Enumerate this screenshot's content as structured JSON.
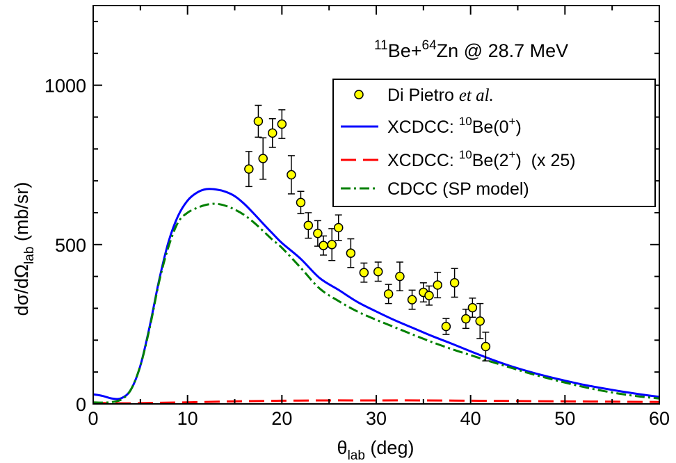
{
  "chart_data": {
    "type": "line",
    "xlabel": {
      "main": "θ",
      "sub": "lab",
      "rest": " (deg)"
    },
    "ylabel": {
      "main": "dσ/dΩ",
      "sub": "lab",
      "rest": " (mb/sr)"
    },
    "xlim": [
      0,
      60
    ],
    "ylim": [
      0,
      1250
    ],
    "x_ticks": [
      0,
      10,
      20,
      30,
      40,
      50,
      60
    ],
    "x_tick_labels": [
      "0",
      "10",
      "20",
      "30",
      "40",
      "50",
      "60"
    ],
    "y_ticks": [
      0,
      500,
      1000
    ],
    "y_tick_labels": [
      "0",
      "500",
      "1000"
    ],
    "grid": false,
    "legend_position": "top-right",
    "annotation": {
      "a1": "11",
      "t1": "Be+",
      "a2": "64",
      "t2": "Zn @ 28.7 MeV"
    },
    "legend": {
      "data_name": "Di Pietro ",
      "data_name_italic": "et al.",
      "xcdcc0_prefix": "XCDCC: ",
      "xcdcc0_mass": "10",
      "xcdcc0_body": "Be(0",
      "xcdcc0_sup": "+",
      "xcdcc0_close": ")",
      "xcdcc2_prefix": "XCDCC: ",
      "xcdcc2_mass": "10",
      "xcdcc2_body": "Be(2",
      "xcdcc2_sup": "+",
      "xcdcc2_close": ")  (x 25)",
      "cdcc": "CDCC (SP model)"
    },
    "series": [
      {
        "kind": "points",
        "color": "#ffff00",
        "edge": "#000000",
        "x": [
          16.5,
          17.5,
          18.0,
          19.0,
          20.0,
          21.0,
          22.0,
          22.8,
          23.8,
          24.4,
          25.3,
          26.0,
          27.3,
          28.7,
          30.2,
          31.3,
          32.5,
          33.8,
          35.0,
          35.6,
          36.5,
          37.4,
          38.3,
          39.5,
          40.2,
          41.0,
          41.6
        ],
        "y": [
          737,
          887,
          770,
          850,
          878,
          719,
          632,
          560,
          535,
          497,
          500,
          553,
          473,
          412,
          415,
          345,
          400,
          327,
          350,
          340,
          373,
          243,
          380,
          267,
          302,
          260,
          180
        ],
        "err": [
          55,
          50,
          65,
          45,
          45,
          60,
          35,
          40,
          40,
          30,
          50,
          40,
          45,
          30,
          30,
          30,
          45,
          30,
          30,
          30,
          40,
          25,
          45,
          30,
          30,
          55,
          45
        ]
      },
      {
        "kind": "line",
        "color": "#0000ff",
        "dash": "",
        "x": [
          0,
          1,
          2,
          3,
          4,
          5,
          6,
          7,
          8,
          9,
          10,
          11,
          12,
          13,
          14,
          15,
          16,
          17,
          18,
          19,
          20,
          22,
          24,
          26,
          28,
          30,
          32,
          34,
          36,
          38,
          40,
          42,
          44,
          46,
          48,
          50,
          52,
          54,
          56,
          58,
          60
        ],
        "y": [
          30,
          25,
          17,
          18,
          45,
          120,
          245,
          390,
          510,
          590,
          638,
          663,
          674,
          673,
          666,
          652,
          628,
          598,
          566,
          535,
          505,
          455,
          395,
          358,
          320,
          290,
          262,
          237,
          212,
          189,
          165,
          142,
          121,
          103,
          87,
          73,
          60,
          49,
          39,
          30,
          22
        ]
      },
      {
        "kind": "line",
        "color": "#ff0000",
        "dash": "22 10",
        "x": [
          0,
          2,
          4,
          6,
          10,
          15,
          20,
          25,
          28,
          30,
          35,
          40,
          45,
          50,
          55,
          60
        ],
        "y": [
          4,
          2,
          2,
          3,
          5,
          8,
          10,
          11,
          11,
          11,
          11,
          10,
          9,
          8,
          7,
          6
        ]
      },
      {
        "kind": "line",
        "color": "#008000",
        "dash": "14 5 3 5",
        "x": [
          0,
          1,
          2,
          3,
          4,
          5,
          6,
          7,
          8,
          9,
          10,
          11,
          12,
          13,
          14,
          15,
          16,
          17,
          18,
          19,
          20,
          22,
          24,
          26,
          28,
          30,
          32,
          34,
          36,
          38,
          40,
          42,
          44,
          46,
          48,
          50,
          52,
          54,
          56,
          58,
          60
        ],
        "y": [
          5,
          4,
          6,
          14,
          45,
          120,
          240,
          385,
          495,
          570,
          600,
          615,
          625,
          628,
          622,
          610,
          593,
          570,
          543,
          515,
          490,
          427,
          362,
          323,
          290,
          264,
          240,
          216,
          193,
          172,
          153,
          134,
          116,
          98,
          82,
          67,
          53,
          41,
          31,
          23,
          17
        ]
      }
    ]
  }
}
